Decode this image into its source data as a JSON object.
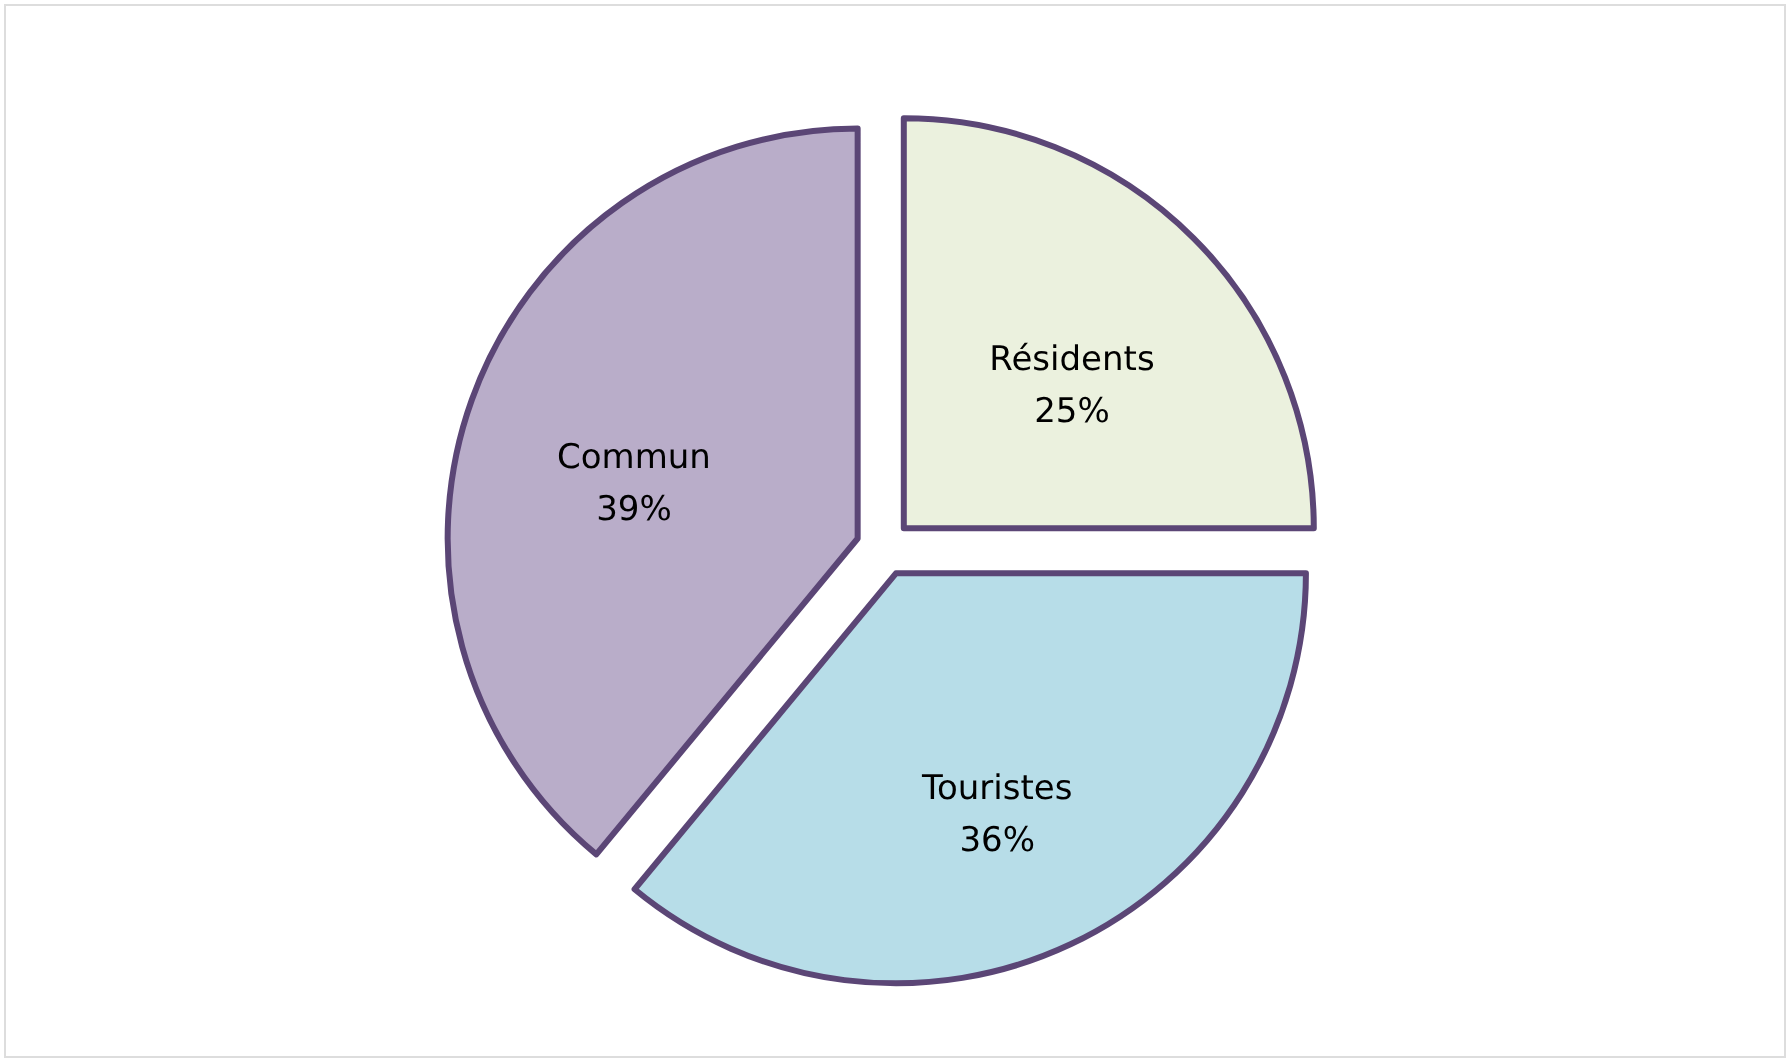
{
  "chart_data": {
    "type": "pie",
    "categories": [
      "Résidents",
      "Touristes",
      "Commun"
    ],
    "values": [
      25,
      36,
      39
    ],
    "value_labels": [
      "25%",
      "36%",
      "39%"
    ],
    "colors": [
      "#ebf1de",
      "#b7dde8",
      "#b9adc9"
    ]
  }
}
